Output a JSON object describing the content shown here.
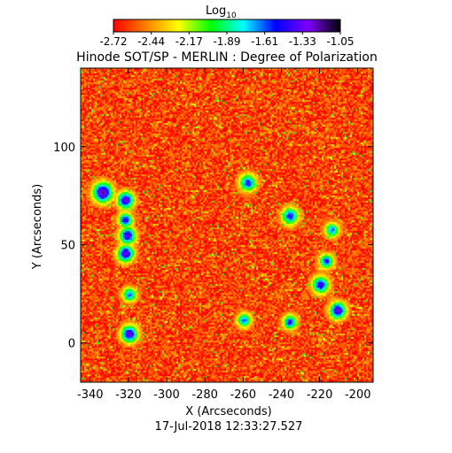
{
  "colorbar": {
    "label_base": "Log",
    "label_sub": "10",
    "ticks": [
      "-2.72",
      "-2.44",
      "-2.17",
      "-1.89",
      "-1.61",
      "-1.33",
      "-1.05"
    ],
    "colors": [
      "#ff0000",
      "#ff7f00",
      "#ffff00",
      "#00ff00",
      "#00ffff",
      "#0000ff",
      "#7f00ff",
      "#000000"
    ]
  },
  "chart_data": {
    "type": "heatmap",
    "title": "Hinode SOT/SP - MERLIN : Degree of Polarization",
    "xlabel": "X (Arcseconds)",
    "ylabel": "Y (Arcseconds)",
    "xlim": [
      -345,
      -192
    ],
    "ylim": [
      -20,
      140
    ],
    "x_ticks": [
      -340,
      -320,
      -300,
      -280,
      -260,
      -240,
      -220,
      -200
    ],
    "x_tick_labels": [
      "-340",
      "-320",
      "-300",
      "-280",
      "-260",
      "-240",
      "-220",
      "-200"
    ],
    "y_ticks": [
      0,
      50,
      100
    ],
    "y_tick_labels": [
      "0",
      "50",
      "100"
    ],
    "value_range": [
      -2.72,
      -1.05
    ],
    "background_level": -2.6,
    "features": [
      {
        "x": -334,
        "y": 77,
        "r": 3.5,
        "value": -1.2
      },
      {
        "x": -322,
        "y": 73,
        "r": 3,
        "value": -1.3
      },
      {
        "x": -322,
        "y": 63,
        "r": 2.5,
        "value": -1.4
      },
      {
        "x": -321,
        "y": 55,
        "r": 3,
        "value": -1.35
      },
      {
        "x": -322,
        "y": 46,
        "r": 3,
        "value": -1.3
      },
      {
        "x": -320,
        "y": 25,
        "r": 2.5,
        "value": -1.6
      },
      {
        "x": -320,
        "y": 5,
        "r": 3,
        "value": -1.3
      },
      {
        "x": -258,
        "y": 82,
        "r": 3,
        "value": -1.5
      },
      {
        "x": -236,
        "y": 65,
        "r": 3,
        "value": -1.5
      },
      {
        "x": -214,
        "y": 58,
        "r": 2.5,
        "value": -1.6
      },
      {
        "x": -217,
        "y": 42,
        "r": 2.5,
        "value": -1.5
      },
      {
        "x": -220,
        "y": 30,
        "r": 3,
        "value": -1.4
      },
      {
        "x": -211,
        "y": 17,
        "r": 3,
        "value": -1.3
      },
      {
        "x": -236,
        "y": 11,
        "r": 2.5,
        "value": -1.5
      },
      {
        "x": -260,
        "y": 12,
        "r": 2.5,
        "value": -1.6
      }
    ]
  },
  "footer": {
    "timestamp": "17-Jul-2018 12:33:27.527"
  }
}
